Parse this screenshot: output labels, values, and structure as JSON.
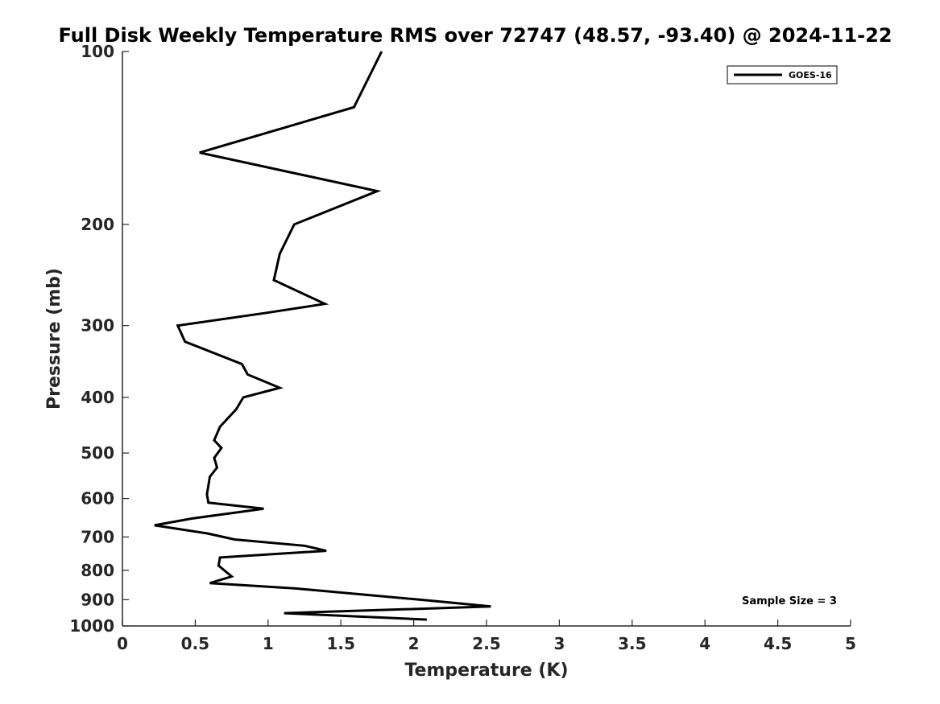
{
  "chart_data": {
    "type": "line",
    "title": "Full Disk Weekly Temperature RMS over 72747 (48.57, -93.40) @ 2024-11-22",
    "xlabel": "Temperature (K)",
    "ylabel": "Pressure (mb)",
    "xlim": [
      0,
      5
    ],
    "ylim": [
      100,
      1000
    ],
    "y_scale": "log",
    "y_reversed": true,
    "x_ticks": [
      "0",
      "0.5",
      "1",
      "1.5",
      "2",
      "2.5",
      "3",
      "3.5",
      "4",
      "4.5",
      "5"
    ],
    "y_ticks": [
      "100",
      "200",
      "300",
      "400",
      "500",
      "600",
      "700",
      "800",
      "900",
      "1000"
    ],
    "grid": false,
    "legend_position": "top-right",
    "series": [
      {
        "name": "GOES-16",
        "color": "#000000",
        "points": [
          {
            "x": 1.78,
            "y": 100
          },
          {
            "x": 1.59,
            "y": 125
          },
          {
            "x": 0.53,
            "y": 150
          },
          {
            "x": 1.75,
            "y": 175
          },
          {
            "x": 1.18,
            "y": 200
          },
          {
            "x": 1.08,
            "y": 225
          },
          {
            "x": 1.04,
            "y": 250
          },
          {
            "x": 1.39,
            "y": 275
          },
          {
            "x": 0.99,
            "y": 285
          },
          {
            "x": 0.38,
            "y": 300
          },
          {
            "x": 0.43,
            "y": 320
          },
          {
            "x": 0.82,
            "y": 350
          },
          {
            "x": 0.86,
            "y": 365
          },
          {
            "x": 1.08,
            "y": 385
          },
          {
            "x": 0.83,
            "y": 400
          },
          {
            "x": 0.78,
            "y": 420
          },
          {
            "x": 0.67,
            "y": 450
          },
          {
            "x": 0.63,
            "y": 475
          },
          {
            "x": 0.68,
            "y": 490
          },
          {
            "x": 0.63,
            "y": 510
          },
          {
            "x": 0.65,
            "y": 530
          },
          {
            "x": 0.6,
            "y": 550
          },
          {
            "x": 0.58,
            "y": 590
          },
          {
            "x": 0.59,
            "y": 610
          },
          {
            "x": 0.97,
            "y": 625
          },
          {
            "x": 0.48,
            "y": 650
          },
          {
            "x": 0.22,
            "y": 668
          },
          {
            "x": 0.58,
            "y": 690
          },
          {
            "x": 0.77,
            "y": 707
          },
          {
            "x": 1.25,
            "y": 725
          },
          {
            "x": 1.4,
            "y": 740
          },
          {
            "x": 0.67,
            "y": 760
          },
          {
            "x": 0.66,
            "y": 785
          },
          {
            "x": 0.75,
            "y": 820
          },
          {
            "x": 0.6,
            "y": 842
          },
          {
            "x": 1.18,
            "y": 860
          },
          {
            "x": 2.04,
            "y": 900
          },
          {
            "x": 2.53,
            "y": 925
          },
          {
            "x": 1.11,
            "y": 950
          },
          {
            "x": 2.09,
            "y": 975
          }
        ]
      }
    ],
    "annotations": [
      "Sample Size = 3"
    ]
  }
}
